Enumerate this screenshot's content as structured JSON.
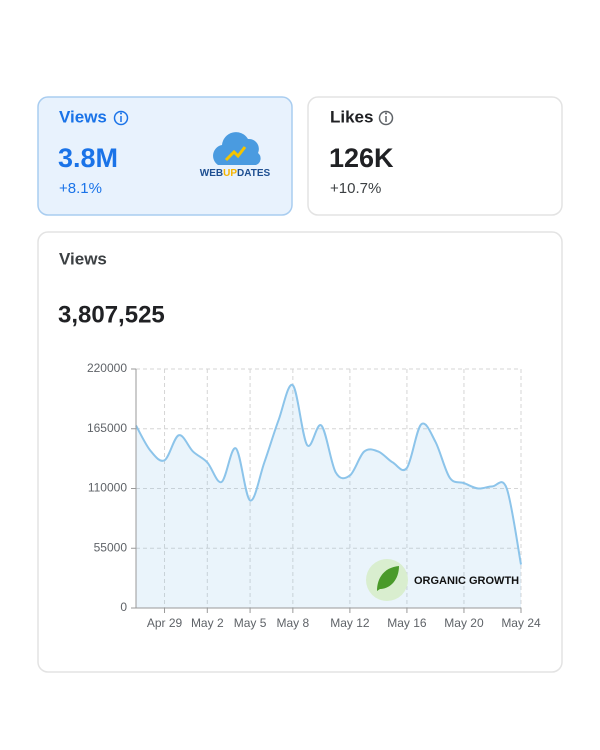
{
  "cards": [
    {
      "label": "Views",
      "value": "3.8M",
      "change": "+8.1%"
    },
    {
      "label": "Likes",
      "value": "126K",
      "change": "+10.7%"
    }
  ],
  "logo": {
    "parts": [
      "WEB",
      "UP",
      "DATES"
    ]
  },
  "badge": {
    "text": "ORGANIC GROWTH"
  },
  "chart_data": {
    "type": "line",
    "title": "Views",
    "total": "3,807,525",
    "categories": [
      null,
      null,
      "Apr 29",
      null,
      null,
      "May 2",
      null,
      null,
      "May 5",
      null,
      null,
      "May 8",
      null,
      null,
      null,
      "May 12",
      null,
      null,
      null,
      "May 16",
      null,
      null,
      null,
      "May 20",
      null,
      null,
      null,
      "May 24"
    ],
    "values": [
      168000,
      145000,
      136000,
      159000,
      144000,
      134000,
      116000,
      147000,
      99000,
      134000,
      173000,
      205000,
      150000,
      168000,
      125000,
      122000,
      144000,
      144000,
      134000,
      129000,
      169000,
      153000,
      120000,
      115000,
      110000,
      112000,
      110000,
      40000
    ],
    "color": "#8cc4ea",
    "ylim": [
      0,
      220000
    ],
    "yticks": [
      0,
      55000,
      110000,
      165000,
      220000
    ],
    "grid": true
  }
}
